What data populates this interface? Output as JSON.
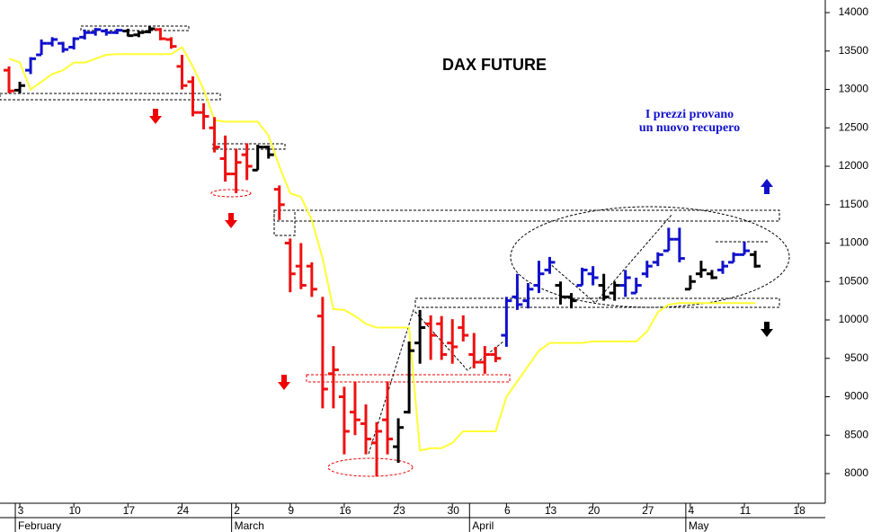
{
  "chart_data": {
    "type": "ohlc",
    "title": "DAX FUTURE",
    "annotation": [
      "I prezzi provano",
      "un nuovo recupero"
    ],
    "categories": [
      null,
      "3",
      null,
      null,
      null,
      null,
      "10",
      null,
      null,
      null,
      null,
      "17",
      null,
      null,
      null,
      null,
      "24",
      null,
      null,
      null,
      null,
      "2",
      null,
      null,
      null,
      null,
      "9",
      null,
      null,
      null,
      null,
      "16",
      null,
      null,
      null,
      null,
      "23",
      null,
      null,
      null,
      null,
      "30",
      null,
      null,
      null,
      null,
      "6",
      null,
      null,
      null,
      "13",
      null,
      null,
      null,
      "20",
      null,
      null,
      null,
      null,
      "27",
      null,
      null,
      null,
      "4",
      null,
      null,
      null,
      null,
      "11",
      null,
      null,
      null,
      null,
      "18",
      null,
      null
    ],
    "month_labels": [
      null,
      "February",
      null,
      null,
      null,
      null,
      null,
      null,
      null,
      null,
      null,
      null,
      null,
      null,
      null,
      null,
      null,
      null,
      null,
      null,
      null,
      "March",
      null,
      null,
      null,
      null,
      null,
      null,
      null,
      null,
      null,
      null,
      null,
      null,
      null,
      null,
      null,
      null,
      null,
      null,
      null,
      null,
      null,
      "April",
      null,
      null,
      null,
      null,
      null,
      null,
      null,
      null,
      null,
      null,
      null,
      null,
      null,
      null,
      null,
      null,
      null,
      null,
      null,
      "May",
      null,
      null,
      null,
      null,
      null,
      null,
      null,
      null,
      null,
      null,
      null,
      null
    ],
    "open": [
      13250,
      12990,
      13250,
      13450,
      13600,
      13600,
      13550,
      13680,
      13740,
      13760,
      13740,
      13760,
      13710,
      13750,
      13780,
      13650,
      13300,
      13100,
      12700,
      12500,
      12100,
      11900,
      12150,
      11950,
      12250,
      11700,
      11000,
      10700,
      10700,
      10050,
      9300,
      9000,
      8800,
      8650,
      8400,
      8700,
      8350,
      8800,
      9700,
      9950,
      9950,
      9700,
      9900,
      9550,
      9450,
      9550,
      9800,
      10300,
      10250,
      10450,
      10650,
      10450,
      10300,
      10450,
      10600,
      10450,
      10350,
      10450,
      10350,
      10600,
      10750,
      10900,
      11050,
      10400,
      10600,
      10600,
      10650,
      10750,
      10850,
      10850,
      null,
      null,
      null,
      null,
      null,
      null
    ],
    "high": [
      13300,
      13100,
      13420,
      13650,
      13680,
      13620,
      13680,
      13780,
      13800,
      13790,
      13790,
      13790,
      13760,
      13830,
      13800,
      13680,
      13450,
      13170,
      12820,
      12640,
      12400,
      12230,
      12300,
      12280,
      12270,
      11750,
      11060,
      11000,
      10750,
      10300,
      9660,
      9130,
      9200,
      8900,
      8670,
      9200,
      8720,
      9720,
      10130,
      10060,
      10050,
      10010,
      10060,
      9830,
      9660,
      9650,
      10300,
      10600,
      10480,
      10770,
      10820,
      10500,
      10350,
      10680,
      10700,
      10600,
      10500,
      10650,
      10550,
      10770,
      10880,
      11200,
      11200,
      10580,
      10770,
      10650,
      10770,
      10880,
      11020,
      10900,
      null,
      null,
      null,
      null,
      null,
      null
    ],
    "low": [
      12950,
      12950,
      13200,
      13450,
      13560,
      13480,
      13520,
      13650,
      13700,
      13700,
      13720,
      13690,
      13680,
      13730,
      13640,
      13530,
      13000,
      12650,
      12480,
      12180,
      11800,
      11650,
      11820,
      11950,
      12100,
      11300,
      10360,
      10400,
      10300,
      8850,
      8850,
      8250,
      8500,
      8250,
      7960,
      8250,
      8140,
      8780,
      9430,
      9480,
      9480,
      9430,
      9720,
      9370,
      9300,
      9450,
      9650,
      10130,
      10150,
      10350,
      10600,
      10200,
      10150,
      10450,
      10450,
      10250,
      10250,
      10300,
      10350,
      10550,
      10700,
      10900,
      10750,
      10400,
      10550,
      10530,
      10600,
      10750,
      10850,
      10680,
      null,
      null,
      null,
      null,
      null,
      null
    ],
    "close": [
      12980,
      13050,
      13400,
      13600,
      13650,
      13520,
      13660,
      13740,
      13780,
      13740,
      13770,
      13700,
      13740,
      13790,
      13660,
      13560,
      13050,
      12700,
      12650,
      12250,
      11900,
      12050,
      12000,
      12250,
      12150,
      11500,
      10600,
      10450,
      10400,
      9100,
      9350,
      8550,
      8700,
      8450,
      8550,
      8450,
      8600,
      9600,
      9900,
      9800,
      9550,
      9650,
      9800,
      9450,
      9550,
      9500,
      10250,
      10200,
      10400,
      10600,
      10750,
      10300,
      10250,
      10650,
      10550,
      10300,
      10450,
      10550,
      10450,
      10700,
      10850,
      11050,
      10800,
      10500,
      10650,
      10550,
      10700,
      10850,
      10900,
      10700,
      null,
      null,
      null,
      null,
      null,
      null
    ],
    "colors": [
      "#ee1111",
      "#000000",
      "#1111cc",
      "#1111cc",
      "#1111cc",
      "#1111cc",
      "#1111cc",
      "#1111cc",
      "#1111cc",
      "#1111cc",
      "#1111cc",
      "#000000",
      "#000000",
      "#000000",
      "#ee1111",
      "#ee1111",
      "#ee1111",
      "#ee1111",
      "#ee1111",
      "#ee1111",
      "#ee1111",
      "#ee1111",
      "#ee1111",
      "#000000",
      "#000000",
      "#ee1111",
      "#ee1111",
      "#ee1111",
      "#ee1111",
      "#ee1111",
      "#ee1111",
      "#ee1111",
      "#ee1111",
      "#ee1111",
      "#ee1111",
      "#ee1111",
      "#000000",
      "#000000",
      "#000000",
      "#ee1111",
      "#ee1111",
      "#ee1111",
      "#ee1111",
      "#ee1111",
      "#ee1111",
      "#ee1111",
      "#1111cc",
      "#1111cc",
      "#1111cc",
      "#1111cc",
      "#1111cc",
      "#000000",
      "#000000",
      "#1111cc",
      "#1111cc",
      "#000000",
      "#000000",
      "#1111cc",
      "#1111cc",
      "#1111cc",
      "#1111cc",
      "#1111cc",
      "#1111cc",
      "#000000",
      "#000000",
      "#000000",
      "#1111cc",
      "#1111cc",
      "#1111cc",
      "#000000",
      null,
      null,
      null,
      null,
      null,
      null
    ],
    "overlay": {
      "color": "#ffff33",
      "values": [
        13400,
        13350,
        13000,
        13100,
        13200,
        13250,
        13350,
        13350,
        13400,
        13450,
        13460,
        13460,
        13460,
        13460,
        13460,
        13460,
        13550,
        13300,
        13000,
        12600,
        12580,
        12580,
        12580,
        12580,
        12400,
        12000,
        11650,
        11600,
        11300,
        10800,
        10140,
        10130,
        10050,
        9950,
        9900,
        9900,
        9900,
        9900,
        8300,
        8330,
        8330,
        8400,
        8550,
        8550,
        8550,
        8550,
        9000,
        9200,
        9400,
        9600,
        9700,
        9700,
        9700,
        9700,
        9720,
        9720,
        9720,
        9720,
        9720,
        9850,
        10100,
        10200,
        10220,
        10220,
        10220,
        10220,
        10220,
        10220,
        10220,
        10220,
        null,
        null,
        null,
        null,
        null,
        null
      ]
    },
    "ylim": [
      7614,
      14164
    ],
    "yticks": [
      8000,
      8500,
      9000,
      9500,
      10000,
      10500,
      11000,
      11500,
      12000,
      12500,
      13000,
      13500,
      14000
    ]
  }
}
